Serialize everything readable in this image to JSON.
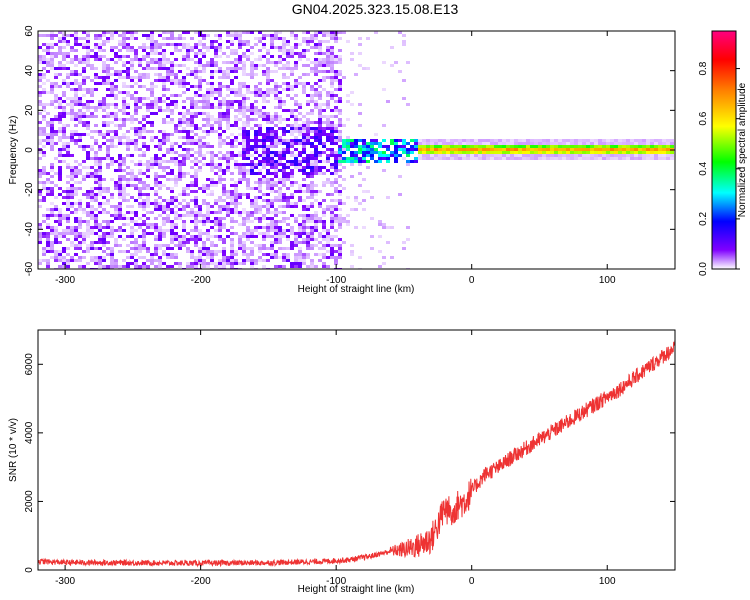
{
  "title": "GN04.2025.323.15.08.E13",
  "chart_data": [
    {
      "type": "heatmap",
      "xlabel": "Height of straight line (km)",
      "ylabel": "Frequency (Hz)",
      "xlim": [
        -320,
        150
      ],
      "ylim": [
        -60,
        60
      ],
      "x_ticks": [
        -300,
        -200,
        -100,
        0,
        100
      ],
      "y_ticks": [
        -60,
        -40,
        -20,
        0,
        20,
        40,
        60
      ],
      "colorbar": {
        "label": "Normalized spectral amplitude",
        "range": [
          0,
          0.95
        ],
        "ticks": [
          0.0,
          0.2,
          0.4,
          0.6,
          0.8
        ],
        "colormap": [
          "#ffffff",
          "#8000ff",
          "#0000ff",
          "#00ffff",
          "#00ff00",
          "#ffff00",
          "#ff8000",
          "#ff0000",
          "#ff0080"
        ]
      },
      "description_regions": [
        {
          "x_range": [
            -320,
            -90
          ],
          "freq_range": [
            -60,
            60
          ],
          "amplitude": 0.05
        },
        {
          "x_range": [
            -90,
            -40
          ],
          "freq_range": [
            -60,
            60
          ],
          "amplitude": 0.02
        },
        {
          "x_range": [
            -170,
            -110
          ],
          "freq_range": [
            -15,
            15
          ],
          "amplitude": 0.15
        },
        {
          "x_range": [
            -100,
            -40
          ],
          "freq_range": [
            -6,
            6
          ],
          "amplitude": 0.3
        },
        {
          "x_range": [
            -40,
            150
          ],
          "freq_range": [
            -3,
            3
          ],
          "amplitude": 0.55
        }
      ]
    },
    {
      "type": "line",
      "xlabel": "Height of straight line (km)",
      "ylabel": "SNR (10 * v/v)",
      "xlim": [
        -320,
        150
      ],
      "ylim": [
        0,
        7000
      ],
      "x_ticks": [
        -300,
        -200,
        -100,
        0,
        100
      ],
      "y_ticks": [
        0,
        2000,
        4000,
        6000
      ],
      "color": "#ee3333",
      "series": [
        {
          "x": [
            -320,
            -300,
            -250,
            -200,
            -150,
            -110,
            -90,
            -75,
            -60,
            -50,
            -40,
            -30,
            -25,
            -20,
            -15,
            -10,
            -5,
            0,
            10,
            20,
            30,
            50,
            70,
            90,
            110,
            130,
            150
          ],
          "y": [
            250,
            220,
            210,
            200,
            210,
            250,
            300,
            400,
            550,
            600,
            700,
            900,
            1300,
            1800,
            1700,
            1900,
            2000,
            2300,
            2800,
            3000,
            3300,
            3800,
            4300,
            4800,
            5300,
            5900,
            6500
          ]
        }
      ]
    }
  ]
}
